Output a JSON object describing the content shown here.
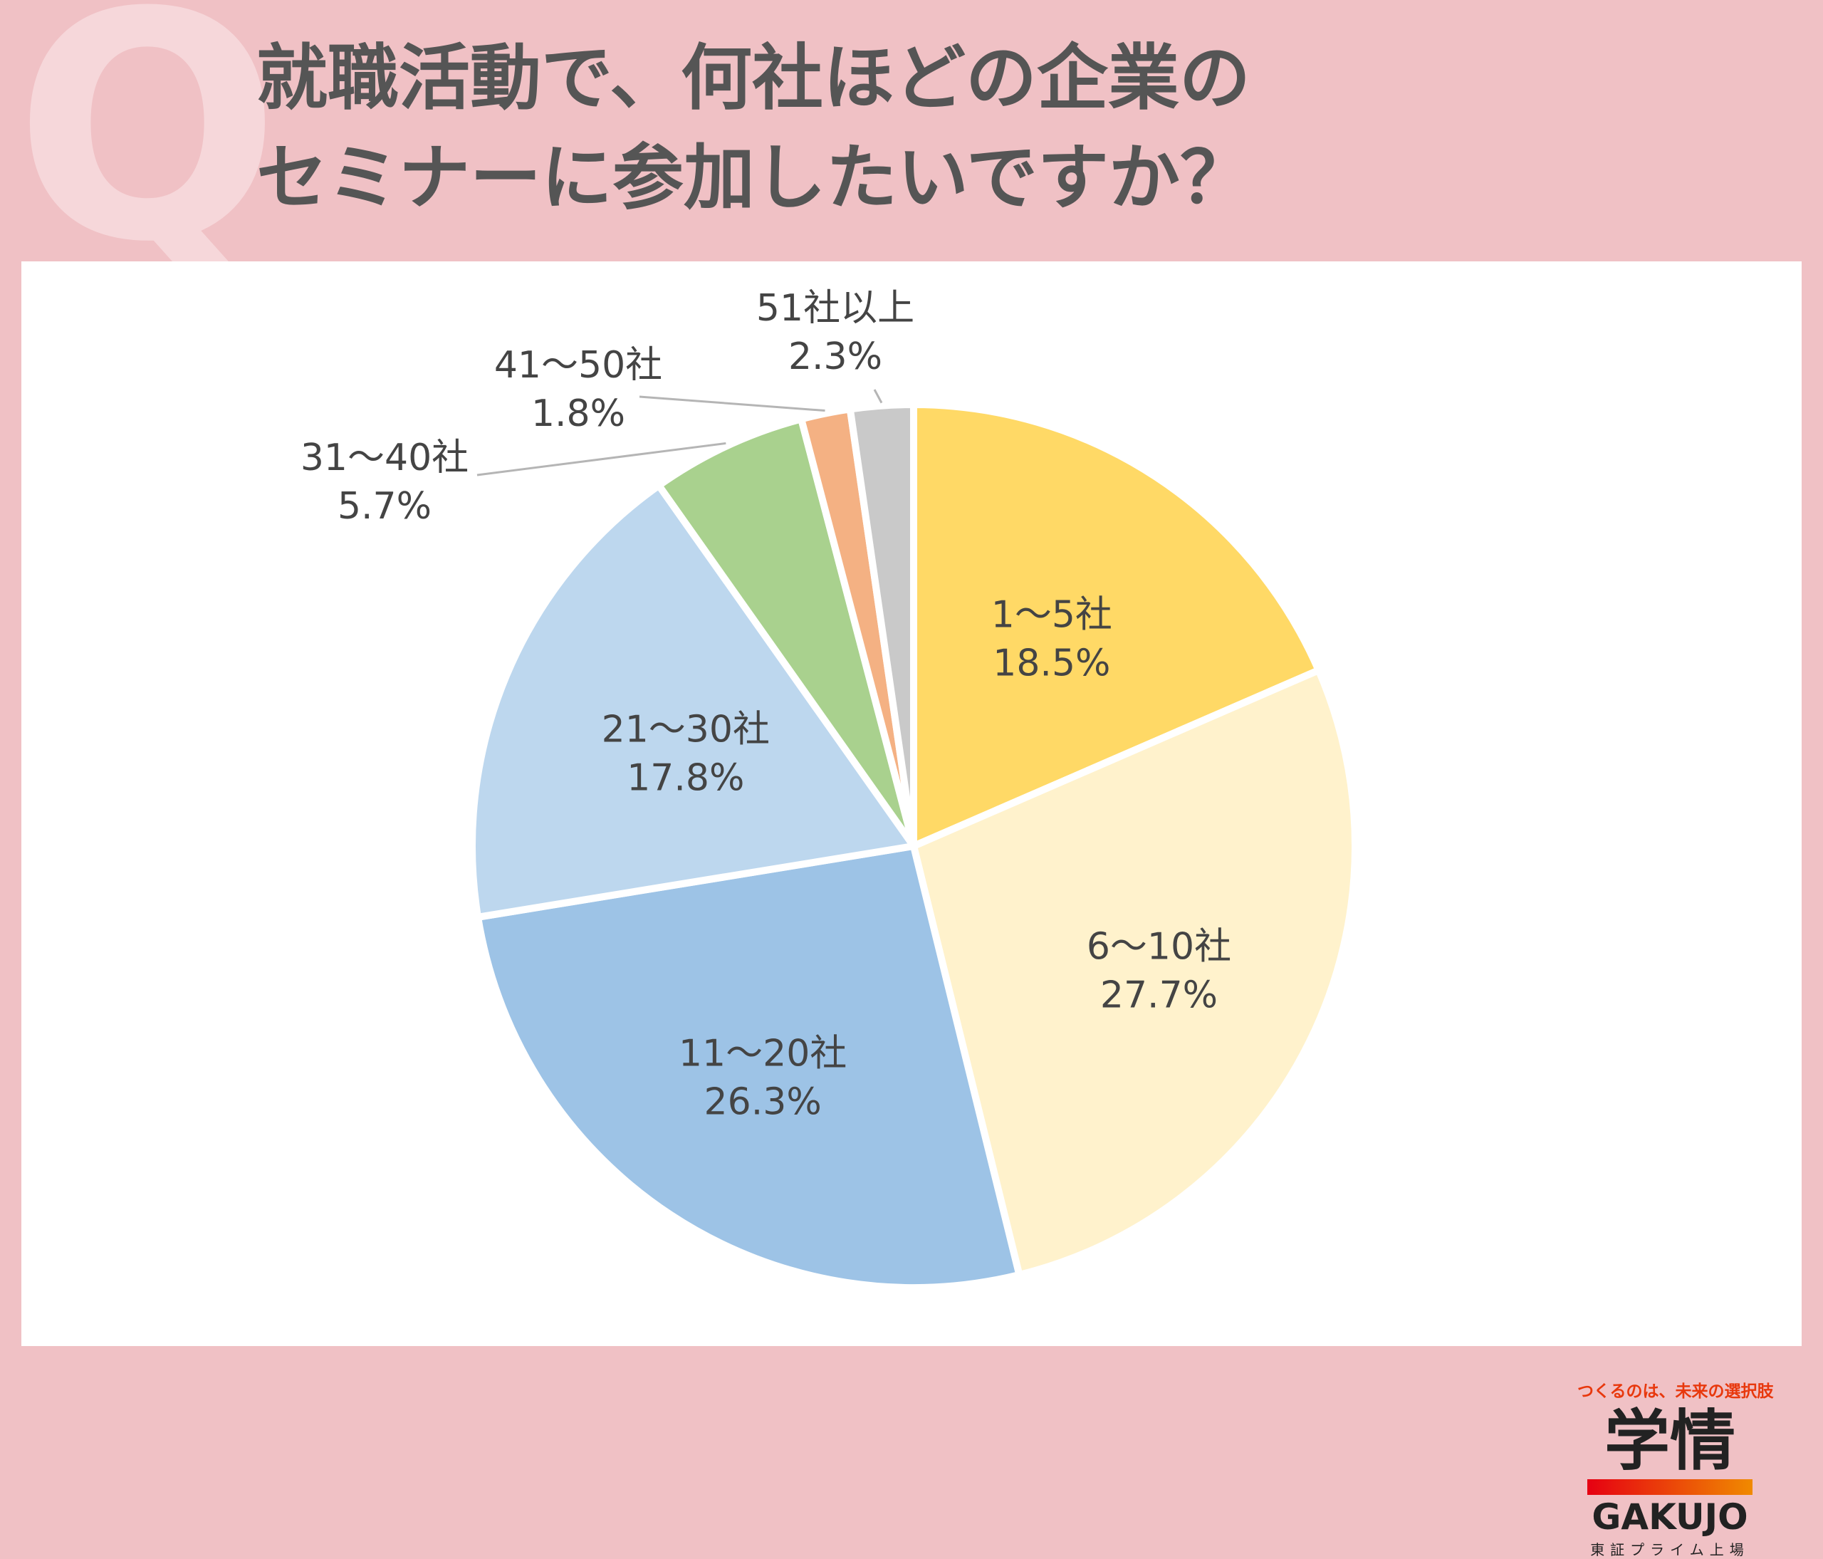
{
  "header": {
    "q_mark": "Q",
    "title_lines": [
      "就職活動で、何社ほどの企業の",
      "セミナーに参加したいですか？"
    ]
  },
  "chart_data": {
    "type": "pie",
    "title": "就職活動で、何社ほどの企業のセミナーに参加したいですか？",
    "categories": [
      "1～5社",
      "6～10社",
      "11～20社",
      "21～30社",
      "31～40社",
      "41～50社",
      "51社以上"
    ],
    "values": [
      18.5,
      27.7,
      26.3,
      17.8,
      5.7,
      1.8,
      2.3
    ],
    "value_labels": [
      "18.5%",
      "27.7%",
      "26.3%",
      "17.8%",
      "5.7%",
      "1.8%",
      "2.3%"
    ],
    "unit": "%",
    "colors": [
      "#ffd966",
      "#fff2cc",
      "#9dc3e6",
      "#bdd7ee",
      "#a9d18e",
      "#f4b183",
      "#c9c9c9"
    ],
    "start": "12 o'clock",
    "direction": "clockwise",
    "legend": "none"
  },
  "brand": {
    "tagline": "つくるのは、未来の選択肢",
    "logo_jp": "学情",
    "logo_en": "GAKUJO",
    "listing": "東証プライム上場",
    "colors": {
      "tagline": "#e8380d",
      "bar_start": "#e60012",
      "bar_end": "#f08a00"
    }
  }
}
